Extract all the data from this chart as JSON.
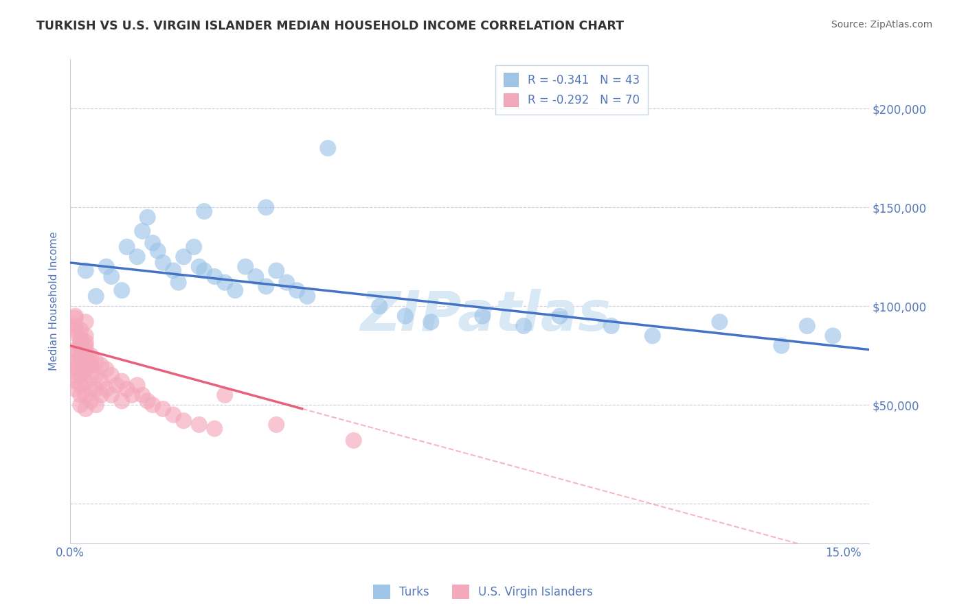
{
  "title": "TURKISH VS U.S. VIRGIN ISLANDER MEDIAN HOUSEHOLD INCOME CORRELATION CHART",
  "source": "Source: ZipAtlas.com",
  "ylabel": "Median Household Income",
  "xlim": [
    0.0,
    0.155
  ],
  "ylim": [
    -20000,
    225000
  ],
  "xtick_vals": [
    0.0,
    0.15
  ],
  "xtick_labels": [
    "0.0%",
    "15.0%"
  ],
  "ytick_vals": [
    0,
    50000,
    100000,
    150000,
    200000
  ],
  "ytick_labels_right": [
    "",
    "$50,000",
    "$100,000",
    "$150,000",
    "$200,000"
  ],
  "blue_R": -0.341,
  "blue_N": 43,
  "pink_R": -0.292,
  "pink_N": 70,
  "blue_label": "Turks",
  "pink_label": "U.S. Virgin Islanders",
  "blue_scatter_color": "#9EC4E8",
  "pink_scatter_color": "#F4A8BB",
  "blue_line_color": "#4472C4",
  "pink_line_color": "#E8607A",
  "axis_label_color": "#5577BB",
  "axis_tick_color": "#5577BB",
  "grid_color": "#CCCCDD",
  "watermark": "ZIPatlas",
  "watermark_color": "#D8E8F5",
  "title_color": "#333333",
  "source_color": "#666666",
  "blue_line_intercept": 122000,
  "blue_line_slope": -280000,
  "pink_line_intercept": 80000,
  "pink_line_slope": -700000,
  "blue_x": [
    0.003,
    0.005,
    0.007,
    0.008,
    0.01,
    0.011,
    0.013,
    0.014,
    0.015,
    0.016,
    0.017,
    0.018,
    0.02,
    0.021,
    0.022,
    0.024,
    0.025,
    0.026,
    0.028,
    0.03,
    0.032,
    0.034,
    0.036,
    0.038,
    0.04,
    0.042,
    0.044,
    0.046,
    0.05,
    0.038,
    0.06,
    0.065,
    0.07,
    0.08,
    0.088,
    0.095,
    0.105,
    0.113,
    0.126,
    0.138,
    0.143,
    0.148,
    0.026
  ],
  "blue_y": [
    118000,
    105000,
    120000,
    115000,
    108000,
    130000,
    125000,
    138000,
    145000,
    132000,
    128000,
    122000,
    118000,
    112000,
    125000,
    130000,
    120000,
    118000,
    115000,
    112000,
    108000,
    120000,
    115000,
    110000,
    118000,
    112000,
    108000,
    105000,
    180000,
    150000,
    100000,
    95000,
    92000,
    95000,
    90000,
    95000,
    90000,
    85000,
    92000,
    80000,
    90000,
    85000,
    148000
  ],
  "pink_x": [
    0.001,
    0.001,
    0.001,
    0.001,
    0.001,
    0.001,
    0.002,
    0.002,
    0.002,
    0.002,
    0.002,
    0.002,
    0.002,
    0.003,
    0.003,
    0.003,
    0.003,
    0.003,
    0.003,
    0.003,
    0.004,
    0.004,
    0.004,
    0.004,
    0.004,
    0.005,
    0.005,
    0.005,
    0.005,
    0.006,
    0.006,
    0.006,
    0.007,
    0.007,
    0.008,
    0.008,
    0.009,
    0.01,
    0.01,
    0.011,
    0.012,
    0.013,
    0.014,
    0.015,
    0.016,
    0.018,
    0.02,
    0.022,
    0.025,
    0.028,
    0.003,
    0.002,
    0.003,
    0.004,
    0.001,
    0.002,
    0.003,
    0.001,
    0.002,
    0.001,
    0.001,
    0.001,
    0.002,
    0.001,
    0.002,
    0.001,
    0.003,
    0.04,
    0.055,
    0.03
  ],
  "pink_y": [
    78000,
    72000,
    68000,
    65000,
    62000,
    58000,
    80000,
    75000,
    70000,
    65000,
    60000,
    55000,
    50000,
    82000,
    78000,
    72000,
    68000,
    62000,
    55000,
    48000,
    75000,
    70000,
    65000,
    58000,
    52000,
    72000,
    65000,
    58000,
    50000,
    70000,
    62000,
    55000,
    68000,
    58000,
    65000,
    55000,
    60000,
    62000,
    52000,
    58000,
    55000,
    60000,
    55000,
    52000,
    50000,
    48000,
    45000,
    42000,
    40000,
    38000,
    85000,
    75000,
    80000,
    72000,
    90000,
    88000,
    92000,
    86000,
    82000,
    94000,
    70000,
    76000,
    84000,
    95000,
    78000,
    88000,
    72000,
    40000,
    32000,
    55000
  ]
}
